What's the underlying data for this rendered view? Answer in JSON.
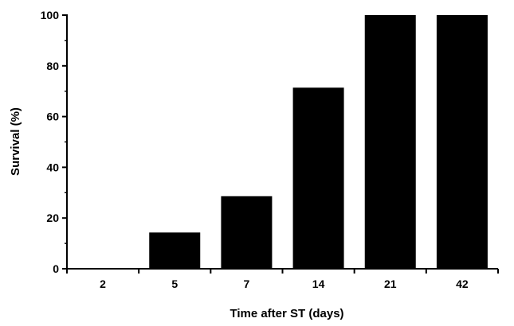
{
  "chart_data": {
    "type": "bar",
    "title": "",
    "xlabel": "Time after ST (days)",
    "ylabel": "Survival (%)",
    "categories": [
      "2",
      "5",
      "7",
      "14",
      "21",
      "42"
    ],
    "values": [
      0,
      14.3,
      28.6,
      71.4,
      100,
      100
    ],
    "ylim": [
      0,
      100
    ],
    "yticks": [
      "0",
      "20",
      "40",
      "60",
      "80",
      "100"
    ],
    "ytick_values": [
      0,
      20,
      40,
      60,
      80,
      100
    ],
    "y_minor_step": 10,
    "grid": false,
    "legend": "none",
    "bar_color": "#000000"
  }
}
